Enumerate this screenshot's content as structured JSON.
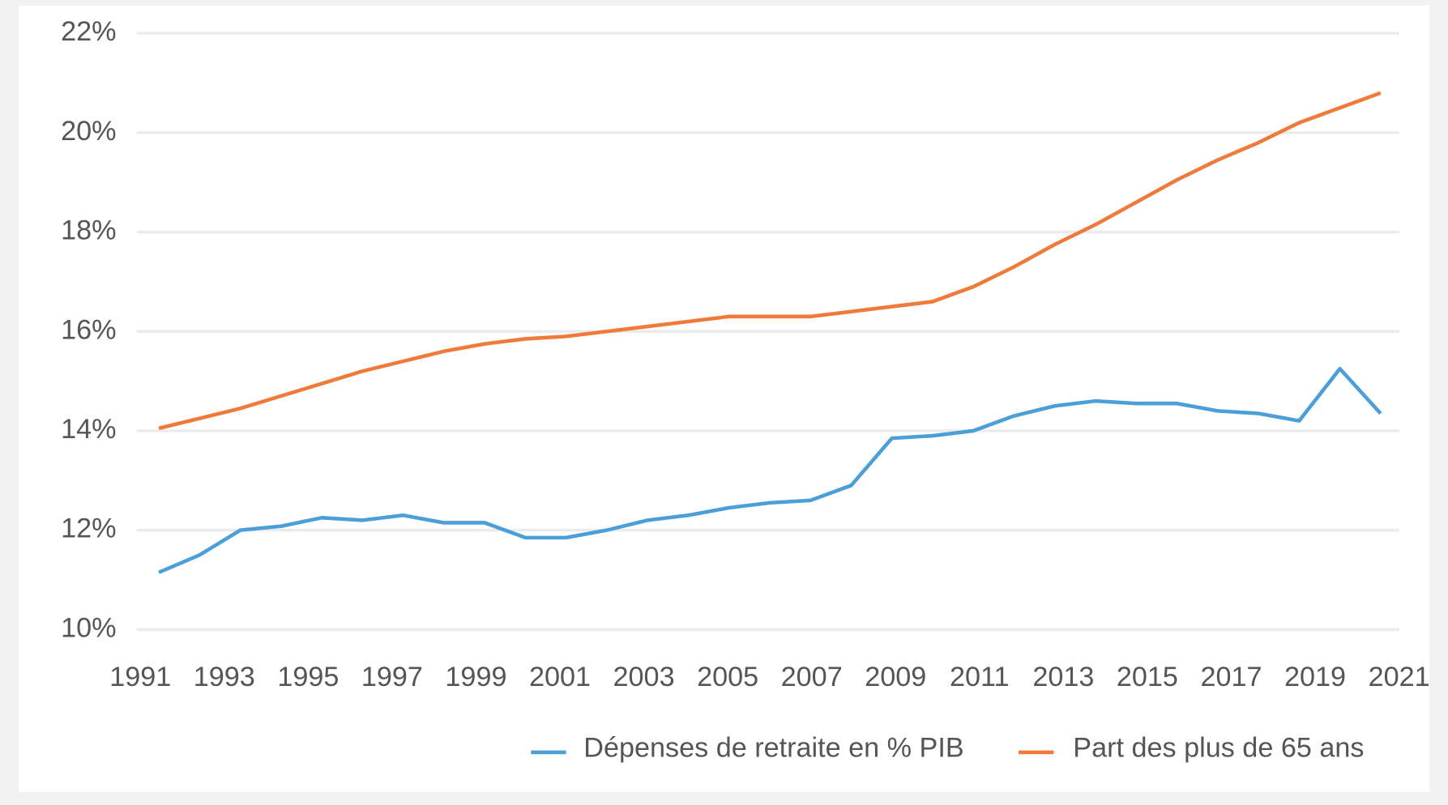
{
  "chart_data": {
    "type": "line",
    "x": [
      1991,
      1992,
      1993,
      1994,
      1995,
      1996,
      1997,
      1998,
      1999,
      2000,
      2001,
      2002,
      2003,
      2004,
      2005,
      2006,
      2007,
      2008,
      2009,
      2010,
      2011,
      2012,
      2013,
      2014,
      2015,
      2016,
      2017,
      2018,
      2019,
      2020,
      2021
    ],
    "series": [
      {
        "name": "Dépenses de retraite en % PIB",
        "color": "#4a9fd8",
        "values": [
          11.15,
          11.5,
          12.0,
          12.08,
          12.25,
          12.2,
          12.3,
          12.15,
          12.15,
          11.85,
          11.85,
          12.0,
          12.2,
          12.3,
          12.45,
          12.55,
          12.6,
          12.9,
          13.85,
          13.9,
          14.0,
          14.3,
          14.5,
          14.6,
          14.55,
          14.55,
          14.4,
          14.35,
          14.2,
          15.25,
          14.35
        ]
      },
      {
        "name": "Part des plus de 65 ans",
        "color": "#f07a3a",
        "values": [
          14.05,
          14.25,
          14.45,
          14.7,
          14.95,
          15.2,
          15.4,
          15.6,
          15.75,
          15.85,
          15.9,
          16.0,
          16.1,
          16.2,
          16.3,
          16.3,
          16.3,
          16.4,
          16.5,
          16.6,
          16.9,
          17.3,
          17.75,
          18.15,
          18.6,
          19.05,
          19.45,
          19.8,
          20.2,
          20.5,
          20.8
        ]
      }
    ],
    "xlim": [
      1991,
      2021
    ],
    "xticks": [
      1991,
      1993,
      1995,
      1997,
      1999,
      2001,
      2003,
      2005,
      2007,
      2009,
      2011,
      2013,
      2015,
      2017,
      2019,
      2021
    ],
    "ylim": [
      10,
      22
    ],
    "yticks": [
      {
        "value": 10,
        "label": "10%"
      },
      {
        "value": 12,
        "label": "12%"
      },
      {
        "value": 14,
        "label": "14%"
      },
      {
        "value": 16,
        "label": "16%"
      },
      {
        "value": 18,
        "label": "18%"
      },
      {
        "value": 20,
        "label": "20%"
      },
      {
        "value": 22,
        "label": "22%"
      }
    ],
    "grid": true,
    "legend": "bottom-right"
  }
}
